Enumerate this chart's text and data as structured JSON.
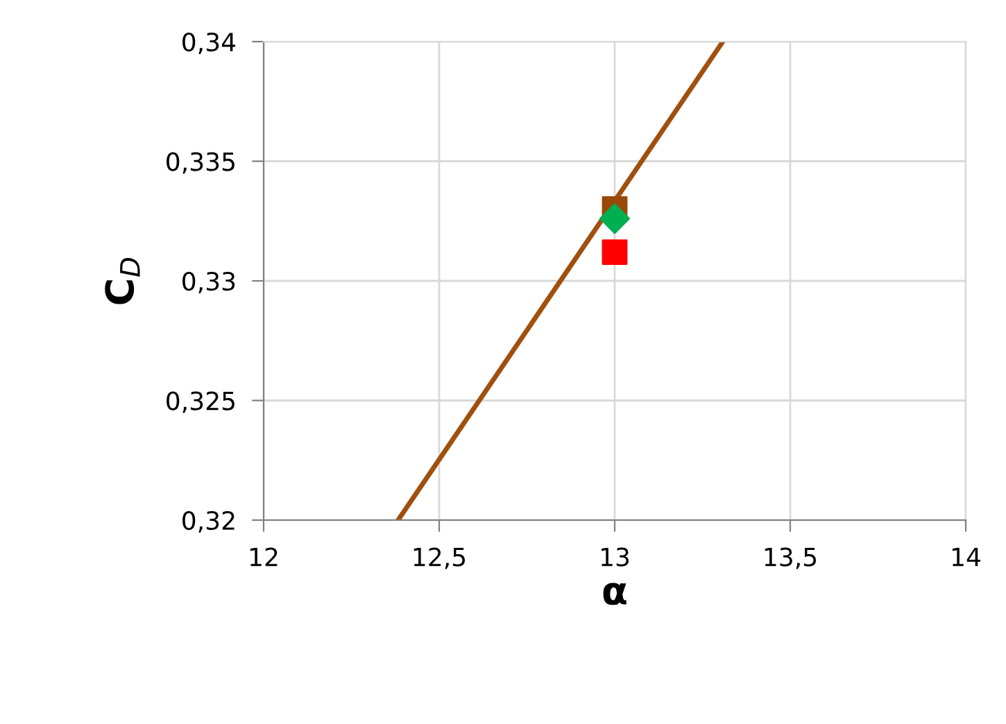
{
  "chart_data": {
    "type": "scatter",
    "xlabel": "α",
    "ylabel": "C$_{D}$",
    "xlim": [
      12,
      14
    ],
    "ylim": [
      0.32,
      0.34
    ],
    "xticks": [
      12,
      {
        "value": 12.5,
        "label": "12,5"
      },
      13,
      {
        "value": 13.5,
        "label": "13,5"
      },
      14
    ],
    "yticks": [
      {
        "value": 0.32,
        "label": "0,32"
      },
      {
        "value": 0.325,
        "label": "0,325"
      },
      {
        "value": 0.33,
        "label": "0,33"
      },
      {
        "value": 0.335,
        "label": "0,335"
      },
      {
        "value": 0.34,
        "label": "0,34"
      }
    ],
    "grid": true,
    "legend": false,
    "series": [
      {
        "type": "line",
        "color": "#a0500e",
        "x": [
          12.383,
          13.308
        ],
        "values": [
          0.32,
          0.34
        ],
        "marker": "none",
        "line_style": "solid"
      },
      {
        "color": "#984807",
        "x": [
          13
        ],
        "values": [
          0.333
        ],
        "marker": "square"
      },
      {
        "color": "#00b050",
        "x": [
          13
        ],
        "values": [
          0.3326
        ],
        "marker": "diamond"
      },
      {
        "color": "#ff0000",
        "x": [
          13
        ],
        "values": [
          0.3312
        ],
        "marker": "square"
      }
    ]
  }
}
